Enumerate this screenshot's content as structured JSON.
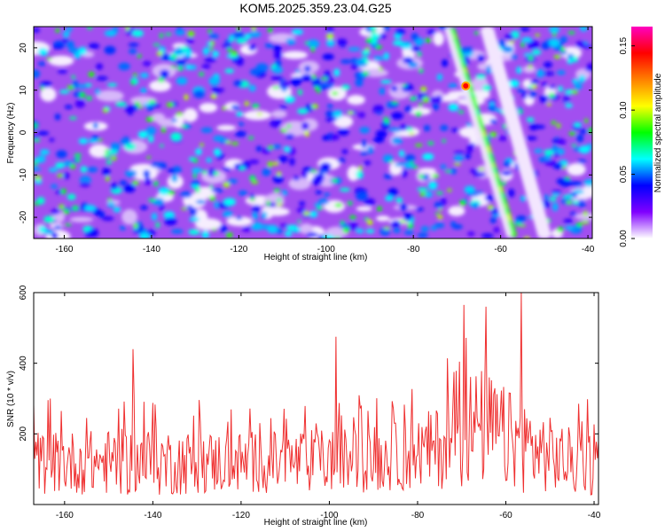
{
  "title": "KOM5.2025.359.23.04.G25",
  "chart_data": [
    {
      "type": "heatmap",
      "xlabel": "Height of straight line (km)",
      "ylabel": "Frequency (Hz)",
      "xlim": [
        -167,
        -39
      ],
      "ylim": [
        -25,
        25
      ],
      "xticks": [
        -160,
        -140,
        -120,
        -100,
        -80,
        -60,
        -40
      ],
      "yticks": [
        -20,
        -10,
        0,
        10,
        20
      ],
      "colorbar": {
        "label": "Normalized spectral amplitude",
        "range": [
          0,
          0.165
        ],
        "ticks": [
          0.0,
          0.05,
          0.1,
          0.15
        ],
        "tick_labels": [
          "0.00",
          "0.05",
          "0.10",
          "0.15"
        ],
        "colors": [
          "#ffffff",
          "#8000ff",
          "#0000ff",
          "#00ffff",
          "#00ff00",
          "#ffff00",
          "#ff8000",
          "#ff0000",
          "#ff00c0"
        ]
      },
      "features": [
        {
          "name": "main track",
          "x": [
            -71,
            -57
          ],
          "y": [
            24,
            -24
          ],
          "peak": {
            "x": -68,
            "y": 11,
            "value": 0.16
          }
        },
        {
          "name": "faint track",
          "x": [
            -63,
            -50
          ],
          "y": [
            24,
            -24
          ]
        }
      ]
    },
    {
      "type": "line",
      "xlabel": "Height of straight line (km)",
      "ylabel": "SNR (10 * v/v)",
      "xlim": [
        -167,
        -39
      ],
      "ylim": [
        0,
        600
      ],
      "xticks": [
        -160,
        -140,
        -120,
        -100,
        -80,
        -60,
        -40
      ],
      "yticks": [
        200,
        400,
        600
      ],
      "color": "#ef3030",
      "x_step": 0.25,
      "envelope": {
        "x": [
          -167,
          -160,
          -150,
          -140,
          -130,
          -120,
          -110,
          -100,
          -90,
          -85,
          -80,
          -75,
          -70,
          -68,
          -65,
          -62,
          -60,
          -57,
          -55,
          -50,
          -45,
          -40,
          -39
        ],
        "baseline": [
          110,
          110,
          110,
          110,
          110,
          110,
          110,
          115,
          120,
          125,
          135,
          150,
          180,
          200,
          200,
          190,
          170,
          160,
          150,
          130,
          110,
          105,
          105
        ],
        "peak": [
          300,
          300,
          310,
          330,
          300,
          300,
          300,
          310,
          320,
          330,
          350,
          400,
          480,
          570,
          560,
          520,
          480,
          470,
          440,
          360,
          320,
          300,
          300
        ]
      },
      "highlights": [
        {
          "x": -144.5,
          "y": 440
        },
        {
          "x": -98.5,
          "y": 475
        },
        {
          "x": -69.5,
          "y": 565
        },
        {
          "x": -64.5,
          "y": 560
        },
        {
          "x": -56.5,
          "y": 600
        }
      ]
    }
  ]
}
